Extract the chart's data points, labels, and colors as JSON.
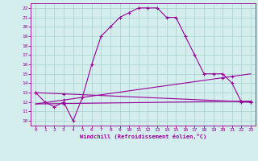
{
  "xlabel": "Windchill (Refroidissement éolien,°C)",
  "background_color": "#d4eeee",
  "grid_color": "#b0d4d4",
  "line_color": "#990099",
  "xlim": [
    -0.5,
    23.5
  ],
  "ylim": [
    9.5,
    22.5
  ],
  "xticks": [
    0,
    1,
    2,
    3,
    4,
    5,
    6,
    7,
    8,
    9,
    10,
    11,
    12,
    13,
    14,
    15,
    16,
    17,
    18,
    19,
    20,
    21,
    22,
    23
  ],
  "yticks": [
    10,
    11,
    12,
    13,
    14,
    15,
    16,
    17,
    18,
    19,
    20,
    21,
    22
  ],
  "curve_main": {
    "x": [
      0,
      1,
      2,
      3,
      4,
      5,
      6,
      7,
      8,
      9,
      10,
      11,
      12,
      13,
      14,
      15,
      16,
      17,
      18,
      19,
      20,
      21,
      22,
      23
    ],
    "y": [
      13,
      12,
      11.5,
      12,
      10,
      12.5,
      16,
      19,
      20,
      21,
      21.5,
      22,
      22,
      22,
      21,
      21,
      19,
      17,
      15,
      15,
      15,
      14,
      12,
      12
    ]
  },
  "line1": {
    "x": [
      0,
      23
    ],
    "y": [
      13.0,
      12.0
    ]
  },
  "line2": {
    "x": [
      0,
      23
    ],
    "y": [
      11.8,
      15.0
    ]
  },
  "line3": {
    "x": [
      0,
      23
    ],
    "y": [
      11.8,
      12.1
    ]
  },
  "markers_line1": {
    "x": [
      0,
      3,
      22,
      23
    ],
    "y": [
      13.0,
      11.8,
      12.0,
      12.0
    ]
  },
  "markers_line2": {
    "x": [
      3,
      20,
      21
    ],
    "y": [
      11.8,
      14.5,
      14.0
    ]
  },
  "markers_line3": {
    "x": [
      3,
      22,
      23
    ],
    "y": [
      11.8,
      12.0,
      12.0
    ]
  }
}
